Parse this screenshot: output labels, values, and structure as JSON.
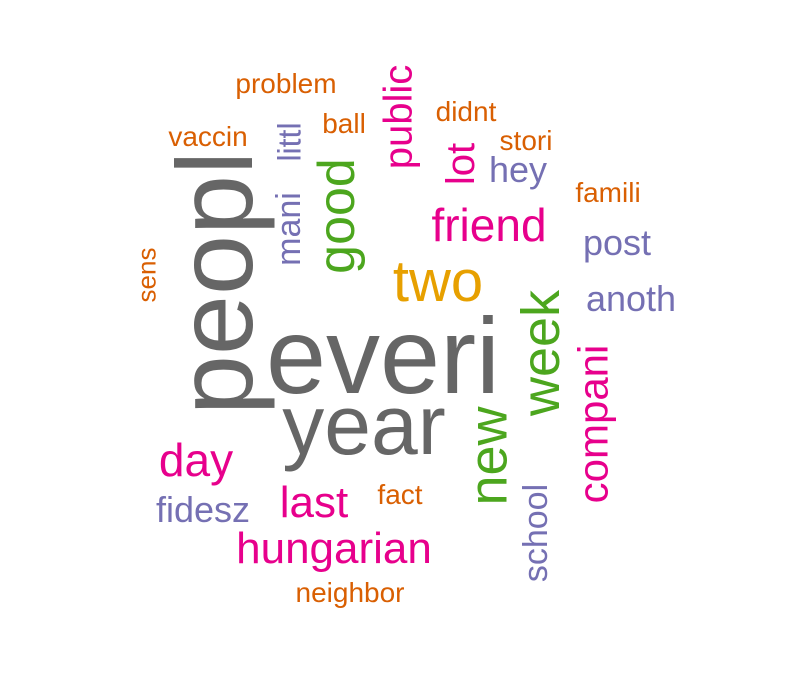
{
  "colors": {
    "gray": "#666666",
    "orange": "#e7a000",
    "green": "#4ca61e",
    "magenta": "#e7008c",
    "purple": "#7570b3",
    "burnt_orange": "#d95f02"
  },
  "words": [
    {
      "text": "everi",
      "color": "#666666",
      "weight": 100
    },
    {
      "text": "peopl",
      "color": "#666666",
      "weight": 96
    },
    {
      "text": "year",
      "color": "#666666",
      "weight": 90
    },
    {
      "text": "two",
      "color": "#e7a000",
      "weight": 60
    },
    {
      "text": "week",
      "color": "#4ca61e",
      "weight": 55
    },
    {
      "text": "new",
      "color": "#4ca61e",
      "weight": 55
    },
    {
      "text": "good",
      "color": "#4ca61e",
      "weight": 52
    },
    {
      "text": "friend",
      "color": "#e7008c",
      "weight": 45
    },
    {
      "text": "hungarian",
      "color": "#e7008c",
      "weight": 45
    },
    {
      "text": "last",
      "color": "#e7008c",
      "weight": 45
    },
    {
      "text": "day",
      "color": "#e7008c",
      "weight": 45
    },
    {
      "text": "compani",
      "color": "#e7008c",
      "weight": 45
    },
    {
      "text": "public",
      "color": "#e7008c",
      "weight": 45
    },
    {
      "text": "lot",
      "color": "#e7008c",
      "weight": 45
    },
    {
      "text": "fidesz",
      "color": "#7570b3",
      "weight": 38
    },
    {
      "text": "post",
      "color": "#7570b3",
      "weight": 38
    },
    {
      "text": "anoth",
      "color": "#7570b3",
      "weight": 38
    },
    {
      "text": "hey",
      "color": "#7570b3",
      "weight": 38
    },
    {
      "text": "school",
      "color": "#7570b3",
      "weight": 38
    },
    {
      "text": "mani",
      "color": "#7570b3",
      "weight": 38
    },
    {
      "text": "littl",
      "color": "#7570b3",
      "weight": 38
    },
    {
      "text": "problem",
      "color": "#d95f02",
      "weight": 30
    },
    {
      "text": "vaccin",
      "color": "#d95f02",
      "weight": 30
    },
    {
      "text": "ball",
      "color": "#d95f02",
      "weight": 30
    },
    {
      "text": "didnt",
      "color": "#d95f02",
      "weight": 30
    },
    {
      "text": "stori",
      "color": "#d95f02",
      "weight": 30
    },
    {
      "text": "famili",
      "color": "#d95f02",
      "weight": 30
    },
    {
      "text": "sens",
      "color": "#d95f02",
      "weight": 30
    },
    {
      "text": "fact",
      "color": "#d95f02",
      "weight": 30
    },
    {
      "text": "neighbor",
      "color": "#d95f02",
      "weight": 30
    }
  ]
}
